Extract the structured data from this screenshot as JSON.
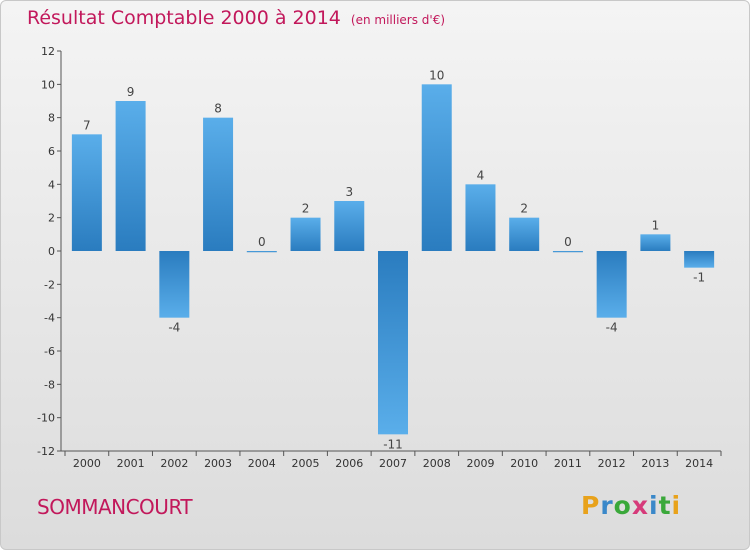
{
  "header": {
    "title": "Résultat Comptable 2000 à 2014",
    "subtitle": "(en milliers d'€)"
  },
  "footer": {
    "commune": "SOMMANCOURT",
    "logo": "Proxiti"
  },
  "colors": {
    "title": "#c2185b",
    "bar_top": "#5aaeea",
    "bar_bottom": "#2a7cbf"
  },
  "chart_data": {
    "type": "bar",
    "title": "Résultat Comptable 2000 à 2014",
    "subtitle": "(en milliers d'€)",
    "xlabel": "",
    "ylabel": "",
    "categories": [
      "2000",
      "2001",
      "2002",
      "2003",
      "2004",
      "2005",
      "2006",
      "2007",
      "2008",
      "2009",
      "2010",
      "2011",
      "2012",
      "2013",
      "2014"
    ],
    "values": [
      7,
      9,
      -4,
      8,
      0,
      2,
      3,
      -11,
      10,
      4,
      2,
      0,
      -4,
      1,
      -1
    ],
    "value_labels": [
      "7",
      "9",
      "-4",
      "8",
      "0",
      "2",
      "3",
      "-11",
      "10",
      "4",
      "2",
      "0",
      "-4",
      "1",
      "-1"
    ],
    "ylim": [
      -12,
      12
    ],
    "yticks": [
      -12,
      -10,
      -8,
      -6,
      -4,
      -2,
      0,
      2,
      4,
      6,
      8,
      10,
      12
    ],
    "grid": false,
    "legend": "none"
  }
}
